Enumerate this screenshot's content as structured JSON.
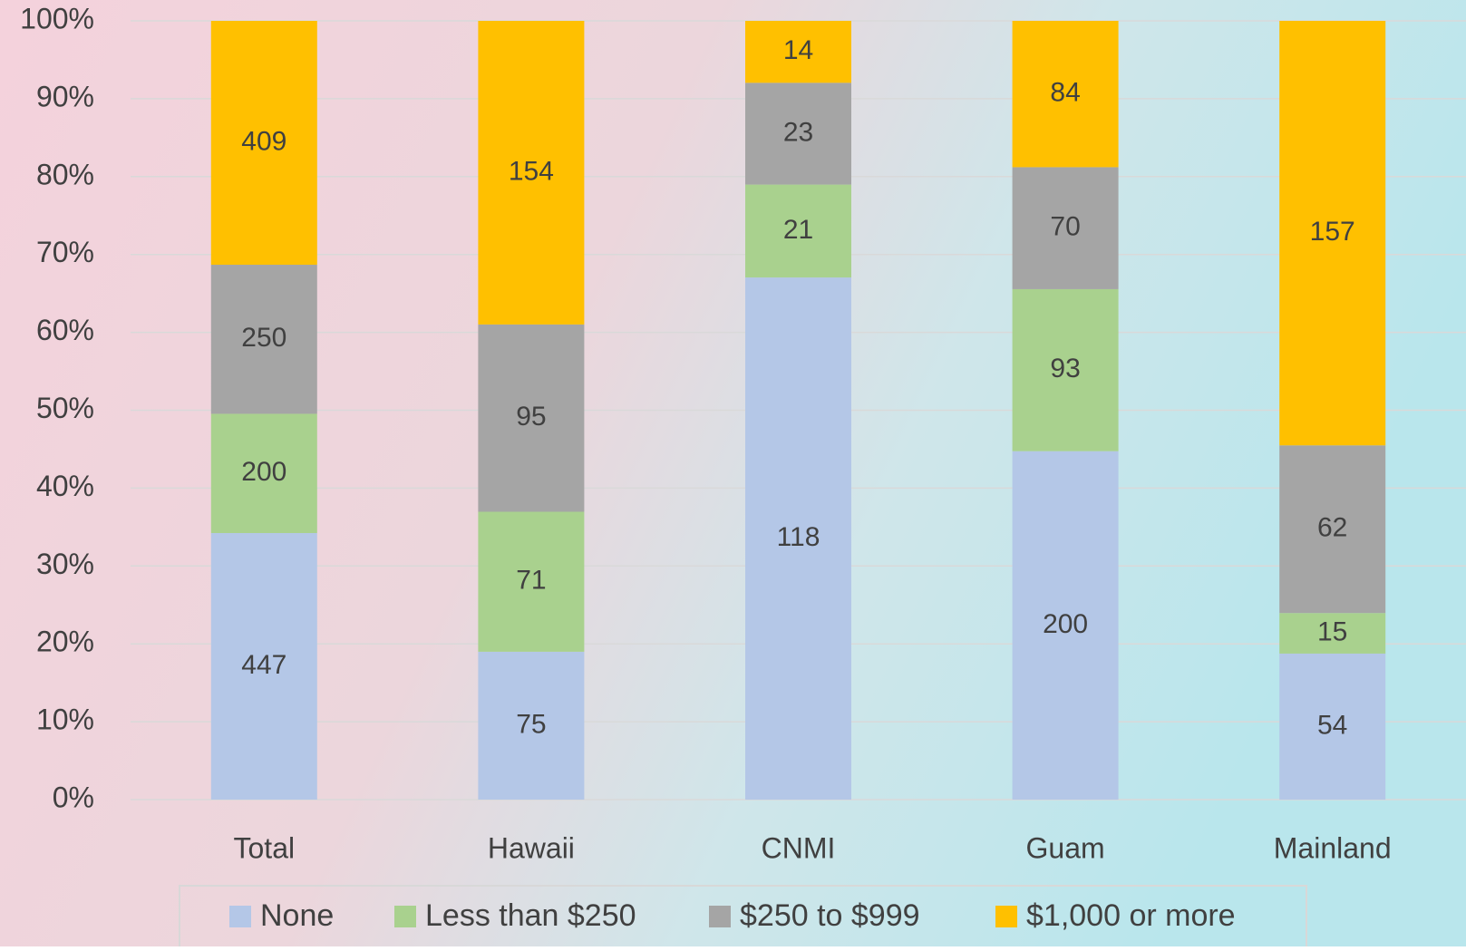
{
  "chart_data": {
    "type": "bar",
    "stacked": "percent",
    "categories": [
      "Total",
      "Hawaii",
      "CNMI",
      "Guam",
      "Mainland"
    ],
    "series": [
      {
        "name": "None",
        "color": "#b4c7e7",
        "values": [
          447,
          75,
          118,
          200,
          54
        ]
      },
      {
        "name": "Less than $250",
        "color": "#a9d18e",
        "values": [
          200,
          71,
          21,
          93,
          15
        ]
      },
      {
        "name": "$250 to $999",
        "color": "#a5a5a5",
        "values": [
          250,
          95,
          23,
          70,
          62
        ]
      },
      {
        "name": "$1,000 or more",
        "color": "#ffc000",
        "values": [
          409,
          154,
          14,
          84,
          157
        ]
      }
    ],
    "ylim": [
      0,
      100
    ],
    "yticks": [
      {
        "value": 0,
        "label": "0%"
      },
      {
        "value": 10,
        "label": "10%"
      },
      {
        "value": 20,
        "label": "20%"
      },
      {
        "value": 30,
        "label": "30%"
      },
      {
        "value": 40,
        "label": "40%"
      },
      {
        "value": 50,
        "label": "50%"
      },
      {
        "value": 60,
        "label": "60%"
      },
      {
        "value": 70,
        "label": "70%"
      },
      {
        "value": 80,
        "label": "80%"
      },
      {
        "value": 90,
        "label": "90%"
      },
      {
        "value": 100,
        "label": "100%"
      }
    ],
    "grid": true,
    "legend": "bottom"
  }
}
